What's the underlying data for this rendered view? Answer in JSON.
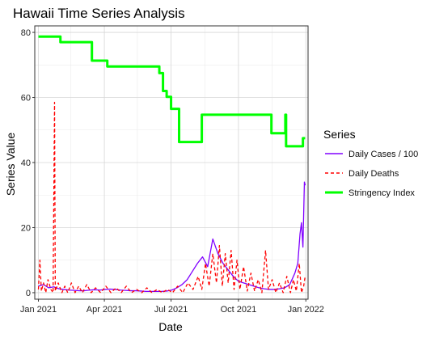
{
  "chart_data": {
    "type": "line",
    "title": "Hawaii Time Series Analysis",
    "xlabel": "Date",
    "ylabel": "Series Value",
    "x_ticks": [
      "Jan 2021",
      "Apr 2021",
      "Jul 2021",
      "Oct 2021",
      "Jan 2022"
    ],
    "y_ticks": [
      "0",
      "20",
      "40",
      "60",
      "80"
    ],
    "xlim": [
      "2020-12-27",
      "2022-01-04"
    ],
    "ylim": [
      -2,
      82
    ],
    "grid": true,
    "legend": {
      "title": "Series",
      "placement": "right"
    },
    "series": [
      {
        "name": "Daily Cases / 100",
        "color": "#8000ff",
        "dash": "solid",
        "points": [
          [
            "2021-01-01",
            2.0
          ],
          [
            "2021-01-08",
            2.5
          ],
          [
            "2021-01-15",
            1.5
          ],
          [
            "2021-01-22",
            1.8
          ],
          [
            "2021-01-29",
            1.2
          ],
          [
            "2021-02-05",
            1.0
          ],
          [
            "2021-02-12",
            0.8
          ],
          [
            "2021-02-19",
            0.7
          ],
          [
            "2021-02-26",
            0.6
          ],
          [
            "2021-03-05",
            0.6
          ],
          [
            "2021-03-12",
            0.8
          ],
          [
            "2021-03-19",
            0.9
          ],
          [
            "2021-03-26",
            0.8
          ],
          [
            "2021-04-02",
            1.0
          ],
          [
            "2021-04-09",
            1.1
          ],
          [
            "2021-04-16",
            1.0
          ],
          [
            "2021-04-23",
            0.8
          ],
          [
            "2021-04-30",
            0.7
          ],
          [
            "2021-05-07",
            0.6
          ],
          [
            "2021-05-14",
            0.6
          ],
          [
            "2021-05-21",
            0.5
          ],
          [
            "2021-05-28",
            0.4
          ],
          [
            "2021-06-04",
            0.4
          ],
          [
            "2021-06-11",
            0.4
          ],
          [
            "2021-06-18",
            0.4
          ],
          [
            "2021-06-25",
            0.5
          ],
          [
            "2021-07-02",
            0.8
          ],
          [
            "2021-07-09",
            1.5
          ],
          [
            "2021-07-16",
            2.5
          ],
          [
            "2021-07-23",
            4.0
          ],
          [
            "2021-07-30",
            6.5
          ],
          [
            "2021-08-06",
            9.0
          ],
          [
            "2021-08-13",
            11.0
          ],
          [
            "2021-08-20",
            8.0
          ],
          [
            "2021-08-27",
            16.5
          ],
          [
            "2021-09-03",
            12.0
          ],
          [
            "2021-09-10",
            9.0
          ],
          [
            "2021-09-17",
            7.0
          ],
          [
            "2021-09-24",
            5.0
          ],
          [
            "2021-10-01",
            3.5
          ],
          [
            "2021-10-08",
            3.0
          ],
          [
            "2021-10-15",
            2.5
          ],
          [
            "2021-10-22",
            2.0
          ],
          [
            "2021-10-29",
            1.5
          ],
          [
            "2021-11-05",
            1.2
          ],
          [
            "2021-11-12",
            1.0
          ],
          [
            "2021-11-19",
            1.0
          ],
          [
            "2021-11-26",
            1.2
          ],
          [
            "2021-12-03",
            1.5
          ],
          [
            "2021-12-10",
            2.5
          ],
          [
            "2021-12-17",
            6.0
          ],
          [
            "2021-12-21",
            9.0
          ],
          [
            "2021-12-24",
            18.0
          ],
          [
            "2021-12-26",
            21.5
          ],
          [
            "2021-12-28",
            14.0
          ],
          [
            "2021-12-30",
            34.0
          ],
          [
            "2021-12-31",
            33.0
          ]
        ]
      },
      {
        "name": "Daily Deaths",
        "color": "#ff0000",
        "dash": "dashed",
        "points": [
          [
            "2021-01-01",
            1.0
          ],
          [
            "2021-01-03",
            10.0
          ],
          [
            "2021-01-05",
            0.5
          ],
          [
            "2021-01-08",
            3.0
          ],
          [
            "2021-01-11",
            0.0
          ],
          [
            "2021-01-14",
            4.0
          ],
          [
            "2021-01-18",
            1.0
          ],
          [
            "2021-01-21",
            0.0
          ],
          [
            "2021-01-23",
            58.5
          ],
          [
            "2021-01-24",
            0.5
          ],
          [
            "2021-01-28",
            3.0
          ],
          [
            "2021-02-02",
            0.0
          ],
          [
            "2021-02-06",
            2.0
          ],
          [
            "2021-02-10",
            0.0
          ],
          [
            "2021-02-15",
            3.0
          ],
          [
            "2021-02-20",
            0.0
          ],
          [
            "2021-02-25",
            2.0
          ],
          [
            "2021-03-02",
            0.0
          ],
          [
            "2021-03-08",
            2.5
          ],
          [
            "2021-03-14",
            0.0
          ],
          [
            "2021-03-20",
            1.5
          ],
          [
            "2021-03-27",
            0.0
          ],
          [
            "2021-04-03",
            2.0
          ],
          [
            "2021-04-10",
            0.0
          ],
          [
            "2021-04-17",
            1.5
          ],
          [
            "2021-04-24",
            0.0
          ],
          [
            "2021-05-01",
            2.0
          ],
          [
            "2021-05-08",
            0.0
          ],
          [
            "2021-05-15",
            1.0
          ],
          [
            "2021-05-22",
            0.0
          ],
          [
            "2021-05-29",
            1.5
          ],
          [
            "2021-06-05",
            0.0
          ],
          [
            "2021-06-12",
            1.0
          ],
          [
            "2021-06-19",
            0.0
          ],
          [
            "2021-06-26",
            1.0
          ],
          [
            "2021-07-03",
            0.0
          ],
          [
            "2021-07-10",
            2.0
          ],
          [
            "2021-07-17",
            0.0
          ],
          [
            "2021-07-24",
            3.0
          ],
          [
            "2021-07-31",
            1.0
          ],
          [
            "2021-08-07",
            5.0
          ],
          [
            "2021-08-12",
            1.0
          ],
          [
            "2021-08-17",
            9.0
          ],
          [
            "2021-08-22",
            2.0
          ],
          [
            "2021-08-27",
            12.0
          ],
          [
            "2021-09-01",
            3.0
          ],
          [
            "2021-09-05",
            14.5
          ],
          [
            "2021-09-09",
            2.0
          ],
          [
            "2021-09-13",
            12.0
          ],
          [
            "2021-09-17",
            3.0
          ],
          [
            "2021-09-21",
            13.0
          ],
          [
            "2021-09-25",
            1.0
          ],
          [
            "2021-09-29",
            10.0
          ],
          [
            "2021-10-03",
            1.0
          ],
          [
            "2021-10-08",
            8.0
          ],
          [
            "2021-10-13",
            0.5
          ],
          [
            "2021-10-18",
            6.0
          ],
          [
            "2021-10-23",
            0.5
          ],
          [
            "2021-10-28",
            4.0
          ],
          [
            "2021-11-02",
            0.0
          ],
          [
            "2021-11-07",
            13.0
          ],
          [
            "2021-11-11",
            1.0
          ],
          [
            "2021-11-16",
            4.0
          ],
          [
            "2021-11-21",
            0.0
          ],
          [
            "2021-11-26",
            3.0
          ],
          [
            "2021-12-01",
            0.0
          ],
          [
            "2021-12-06",
            5.0
          ],
          [
            "2021-12-11",
            0.0
          ],
          [
            "2021-12-15",
            4.0
          ],
          [
            "2021-12-19",
            0.5
          ],
          [
            "2021-12-23",
            9.0
          ],
          [
            "2021-12-26",
            0.0
          ],
          [
            "2021-12-29",
            2.0
          ],
          [
            "2021-12-31",
            5.0
          ]
        ]
      },
      {
        "name": "Stringency Index",
        "color": "#00ff00",
        "dash": "solid",
        "points": [
          [
            "2021-01-01",
            78.7
          ],
          [
            "2021-01-31",
            78.7
          ],
          [
            "2021-01-31",
            77.0
          ],
          [
            "2021-03-15",
            77.0
          ],
          [
            "2021-03-15",
            71.3
          ],
          [
            "2021-04-05",
            71.3
          ],
          [
            "2021-04-05",
            69.5
          ],
          [
            "2021-06-15",
            69.5
          ],
          [
            "2021-06-15",
            67.5
          ],
          [
            "2021-06-20",
            67.5
          ],
          [
            "2021-06-20",
            62.0
          ],
          [
            "2021-06-25",
            62.0
          ],
          [
            "2021-06-25",
            60.2
          ],
          [
            "2021-07-01",
            60.2
          ],
          [
            "2021-07-01",
            56.5
          ],
          [
            "2021-07-12",
            56.5
          ],
          [
            "2021-07-12",
            46.3
          ],
          [
            "2021-08-12",
            46.3
          ],
          [
            "2021-08-12",
            54.7
          ],
          [
            "2021-11-15",
            54.7
          ],
          [
            "2021-11-15",
            49.0
          ],
          [
            "2021-12-04",
            49.0
          ],
          [
            "2021-12-04",
            54.7
          ],
          [
            "2021-12-05",
            54.7
          ],
          [
            "2021-12-05",
            45.0
          ],
          [
            "2021-12-28",
            45.0
          ],
          [
            "2021-12-28",
            47.5
          ],
          [
            "2021-12-31",
            47.5
          ]
        ]
      }
    ]
  }
}
